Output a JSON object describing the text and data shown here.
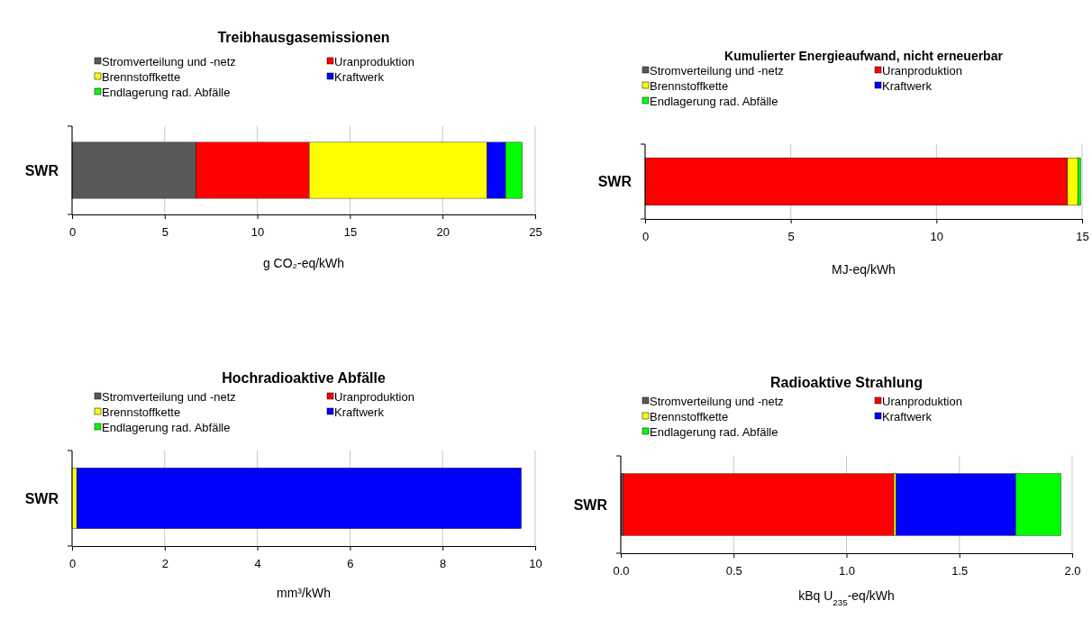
{
  "chart_data": [
    {
      "type": "bar",
      "orientation": "horizontal",
      "stacked": true,
      "title": "Treibhausgasemissionen",
      "xlabel": "g CO₂-eq/kWh",
      "categories": [
        "SWR"
      ],
      "xlim": [
        0,
        25
      ],
      "xticks": [
        0,
        5,
        10,
        15,
        20,
        25
      ],
      "grid": "x",
      "legend": "top",
      "series": [
        {
          "name": "Stromverteilung und -netz",
          "color": "#595959",
          "values": [
            6.7
          ]
        },
        {
          "name": "Uranproduktion",
          "color": "#ff0000",
          "values": [
            6.1
          ]
        },
        {
          "name": "Brennstoffkette",
          "color": "#ffff00",
          "values": [
            9.6
          ]
        },
        {
          "name": "Kraftwerk",
          "color": "#0000ff",
          "values": [
            1.0
          ]
        },
        {
          "name": "Endlagerung rad. Abfälle",
          "color": "#00ff00",
          "values": [
            0.9
          ]
        }
      ]
    },
    {
      "type": "bar",
      "orientation": "horizontal",
      "stacked": true,
      "title": "Kumulierter Energieaufwand, nicht erneuerbar",
      "xlabel": "MJ-eq/kWh",
      "categories": [
        "SWR"
      ],
      "xlim": [
        0,
        15
      ],
      "xticks": [
        0,
        5,
        10,
        15
      ],
      "grid": "x",
      "legend": "top",
      "series": [
        {
          "name": "Stromverteilung und -netz",
          "color": "#595959",
          "values": [
            0
          ]
        },
        {
          "name": "Uranproduktion",
          "color": "#ff0000",
          "values": [
            14.5
          ]
        },
        {
          "name": "Brennstoffkette",
          "color": "#ffff00",
          "values": [
            0.35
          ]
        },
        {
          "name": "Kraftwerk",
          "color": "#0000ff",
          "values": [
            0
          ]
        },
        {
          "name": "Endlagerung rad. Abfälle",
          "color": "#00ff00",
          "values": [
            0.1
          ]
        }
      ]
    },
    {
      "type": "bar",
      "orientation": "horizontal",
      "stacked": true,
      "title": "Hochradioaktive Abfälle",
      "xlabel": "mm³/kWh",
      "categories": [
        "SWR"
      ],
      "xlim": [
        0,
        10
      ],
      "xticks": [
        0,
        2,
        4,
        6,
        8,
        10
      ],
      "grid": "x",
      "legend": "top",
      "series": [
        {
          "name": "Stromverteilung und -netz",
          "color": "#595959",
          "values": [
            null
          ]
        },
        {
          "name": "Uranproduktion",
          "color": "#ff0000",
          "values": [
            0
          ]
        },
        {
          "name": "Brennstoffkette",
          "color": "#ffff00",
          "values": [
            0.1
          ]
        },
        {
          "name": "Kraftwerk",
          "color": "#0000ff",
          "values": [
            9.6
          ]
        },
        {
          "name": "Endlagerung rad. Abfälle",
          "color": "#00ff00",
          "values": [
            0
          ]
        }
      ]
    },
    {
      "type": "bar",
      "orientation": "horizontal",
      "stacked": true,
      "title": "Radioaktive Strahlung",
      "xlabel": "kBq U$_{235}$-eq/kWh",
      "categories": [
        "SWR"
      ],
      "xlim": [
        0,
        2
      ],
      "xticks": [
        {
          "value": 0,
          "label": "0.0"
        },
        {
          "value": 0.5,
          "label": "0.5"
        },
        {
          "value": 1,
          "label": "1.0"
        },
        {
          "value": 1.5,
          "label": "1.5"
        },
        {
          "value": 2,
          "label": "2.0"
        }
      ],
      "grid": "x",
      "legend": "top",
      "series": [
        {
          "name": "Stromverteilung und -netz",
          "color": "#595959",
          "values": [
            0.01
          ]
        },
        {
          "name": "Uranproduktion",
          "color": "#ff0000",
          "values": [
            1.2
          ]
        },
        {
          "name": "Brennstoffkette",
          "color": "#ffff00",
          "values": [
            0.01
          ]
        },
        {
          "name": "Kraftwerk",
          "color": "#0000ff",
          "values": [
            0.53
          ]
        },
        {
          "name": "Endlagerung rad. Abfälle",
          "color": "#00ff00",
          "values": [
            0.2
          ]
        }
      ]
    }
  ]
}
